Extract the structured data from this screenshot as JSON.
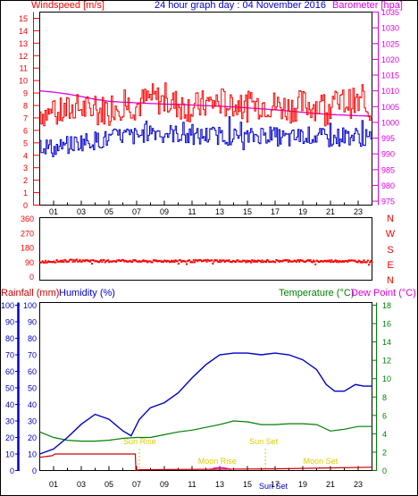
{
  "header": {
    "left_title": "Windspeed [m/s]",
    "center_title": "24 hour graph day : 04 November 2016",
    "right_title": "Barometer [hpa]"
  },
  "x_ticks": [
    "01",
    "03",
    "05",
    "07",
    "09",
    "11",
    "13",
    "15",
    "17",
    "19",
    "21",
    "23"
  ],
  "colors": {
    "wind": "#ff0000",
    "gust_low": "#0000cc",
    "baro": "#e000e0",
    "humidity": "#0000cc",
    "rain": "#cc0000",
    "temp": "#008000",
    "dir": "#ff0000",
    "frame": "#000000",
    "sun": "#ddcc00"
  },
  "chart_data": [
    {
      "type": "line",
      "title": "24 hour graph day : 04 November 2016",
      "x_range": [
        0,
        24
      ],
      "left_axis": {
        "label": "Windspeed [m/s]",
        "ticks": [
          "0",
          "1",
          "2",
          "3",
          "4",
          "5",
          "6",
          "7",
          "8",
          "9",
          "10",
          "11",
          "12",
          "13",
          "14",
          "15"
        ],
        "range": [
          0,
          15.5
        ]
      },
      "right_axis": {
        "label": "Barometer [hpa]",
        "ticks": [
          "975",
          "980",
          "985",
          "990",
          "995",
          "1000",
          "1005",
          "1010",
          "1015",
          "1020",
          "1025",
          "1030",
          "1035"
        ],
        "range": [
          973.75,
          1035
        ]
      },
      "series": [
        {
          "axis": "left",
          "color": "#ff0000",
          "values": [
            7.5,
            7.2,
            7.6,
            7.8,
            7.4,
            7.9,
            8.1,
            8.0,
            8.6,
            8.3,
            8.1,
            7.8,
            8.1,
            8.3,
            8.0,
            7.9,
            8.2,
            8.0,
            7.8,
            8.1,
            8.0,
            7.9,
            8.3,
            8.1,
            7.6
          ]
        },
        {
          "axis": "left",
          "color": "#0000cc",
          "values": [
            4.9,
            4.5,
            4.8,
            5.1,
            5.2,
            5.3,
            5.6,
            5.5,
            6.0,
            5.8,
            5.7,
            5.4,
            5.6,
            5.6,
            5.5,
            5.4,
            5.7,
            5.5,
            5.3,
            5.6,
            5.5,
            5.3,
            5.6,
            5.5,
            5.2
          ]
        },
        {
          "name": "Barometer [hpa]",
          "axis": "right",
          "color": "#e000e0",
          "values": [
            1010,
            1009.6,
            1009.0,
            1008.2,
            1007.3,
            1006.7,
            1006.4,
            1006.2,
            1006.0,
            1005.8,
            1005.7,
            1005.5,
            1005.3,
            1005.1,
            1004.9,
            1004.6,
            1004.3,
            1004.0,
            1003.6,
            1003.2,
            1002.8,
            1002.5,
            1002.3,
            1002.1,
            1002.0
          ]
        }
      ]
    },
    {
      "type": "scatter",
      "x_range": [
        0,
        24
      ],
      "left_axis": {
        "ticks": [
          "0",
          "90",
          "180",
          "270",
          "360"
        ],
        "range": [
          0,
          360
        ]
      },
      "right_labels": [
        "N",
        "W",
        "S",
        "E",
        "N"
      ],
      "series": [
        {
          "color": "#ff0000",
          "values": [
            92,
            95,
            98,
            100,
            97,
            96,
            99,
            95,
            94,
            97,
            96,
            95,
            98,
            97,
            96,
            94,
            95,
            97,
            98,
            96,
            95,
            96,
            97,
            95,
            93
          ]
        }
      ]
    },
    {
      "type": "line",
      "x_range": [
        0,
        24
      ],
      "left_axis": {
        "labels": [
          "Rainfall (mm)",
          "Humidity (%)"
        ],
        "ticks": [
          "0",
          "10",
          "20",
          "30",
          "40",
          "50",
          "60",
          "70",
          "80",
          "90",
          "100"
        ],
        "range": [
          0,
          100
        ]
      },
      "right_axis": {
        "labels": [
          "Temperature (°C)",
          "Dew Point (°C)"
        ],
        "ticks": [
          "0",
          "2",
          "4",
          "6",
          "8",
          "10",
          "12",
          "14",
          "16",
          "18"
        ],
        "range": [
          0,
          18
        ]
      },
      "series": [
        {
          "name": "Humidity (%)",
          "axis": "left",
          "color": "#0000cc",
          "values": [
            [
              0,
              10
            ],
            [
              1,
              13
            ],
            [
              2,
              20
            ],
            [
              3,
              28
            ],
            [
              4,
              34
            ],
            [
              5,
              31
            ],
            [
              6,
              24
            ],
            [
              6.6,
              21
            ],
            [
              7.2,
              31
            ],
            [
              8,
              38
            ],
            [
              9,
              41
            ],
            [
              10,
              47
            ],
            [
              11,
              56
            ],
            [
              12,
              64
            ],
            [
              13,
              70
            ],
            [
              14,
              71
            ],
            [
              15,
              71
            ],
            [
              16,
              70
            ],
            [
              17,
              71
            ],
            [
              18,
              70
            ],
            [
              19,
              67
            ],
            [
              20,
              61
            ],
            [
              20.7,
              52
            ],
            [
              21.3,
              48
            ],
            [
              22,
              48
            ],
            [
              22.8,
              52
            ],
            [
              23.4,
              51
            ],
            [
              24,
              51
            ]
          ]
        },
        {
          "name": "Temperature (°C)",
          "axis": "right",
          "color": "#008000",
          "values": [
            [
              0,
              4.2
            ],
            [
              1,
              3.6
            ],
            [
              2,
              3.3
            ],
            [
              3,
              3.2
            ],
            [
              4,
              3.2
            ],
            [
              5,
              3.3
            ],
            [
              6,
              3.5
            ],
            [
              7,
              3.6
            ],
            [
              8,
              3.6
            ],
            [
              9,
              3.9
            ],
            [
              10,
              4.2
            ],
            [
              11,
              4.4
            ],
            [
              12,
              4.7
            ],
            [
              13,
              5.0
            ],
            [
              14,
              5.4
            ],
            [
              15,
              5.3
            ],
            [
              16,
              5.0
            ],
            [
              17,
              5.0
            ],
            [
              18,
              5.1
            ],
            [
              19,
              5.1
            ],
            [
              20,
              5.0
            ],
            [
              21,
              4.3
            ],
            [
              22,
              4.5
            ],
            [
              23,
              4.8
            ],
            [
              24,
              4.8
            ]
          ]
        },
        {
          "name": "Rainfall (mm)",
          "axis": "left",
          "color": "#cc0000",
          "values": [
            [
              0,
              8
            ],
            [
              0.9,
              9
            ],
            [
              1.1,
              10
            ],
            [
              6.9,
              10
            ],
            [
              6.95,
              0
            ],
            [
              7.2,
              0.5
            ],
            [
              13,
              0.8
            ],
            [
              17,
              1.0
            ],
            [
              24,
              2.0
            ]
          ]
        }
      ],
      "annotations": [
        {
          "label": "Sun Rise",
          "x": 7.2
        },
        {
          "label": "Moon Rise",
          "x": 12.6
        },
        {
          "label": "Sun Set",
          "x": 16.3
        },
        {
          "label": "Moon Set",
          "x": 20.2
        },
        {
          "label": "Sun Set",
          "x": 15.9
        }
      ]
    }
  ],
  "panel2": {
    "right_labels": [
      "N",
      "W",
      "S",
      "E",
      "N"
    ]
  },
  "panel3": {
    "rainfall_label": "Rainfall (mm)",
    "humidity_label": "Humidity (%)",
    "temperature_label": "Temperature (°C)",
    "dewpoint_label": "Dew Point (°C)",
    "annotations": [
      "Sun Rise",
      "Moon Rise",
      "Sun Set",
      "Moon Set"
    ],
    "bottom_sunset_label": "Sun Set"
  }
}
